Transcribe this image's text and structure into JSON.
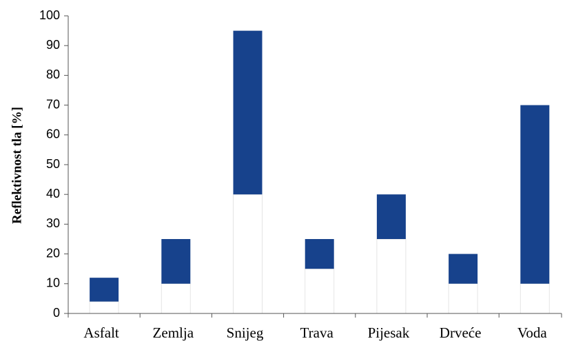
{
  "chart_data": {
    "type": "range_bar",
    "y_label": "Reflektivnost tla [%]",
    "categories": [
      "Asfalt",
      "Zemlja",
      "Snijeg",
      "Trava",
      "Pijesak",
      "Drveće",
      "Voda"
    ],
    "low": [
      4,
      10,
      40,
      15,
      25,
      10,
      10
    ],
    "high": [
      12,
      25,
      95,
      25,
      40,
      20,
      70
    ],
    "color": "#17428c",
    "ylim": [
      0,
      100
    ],
    "yticks": [
      0,
      10,
      20,
      30,
      40,
      50,
      60,
      70,
      80,
      90,
      100
    ]
  }
}
